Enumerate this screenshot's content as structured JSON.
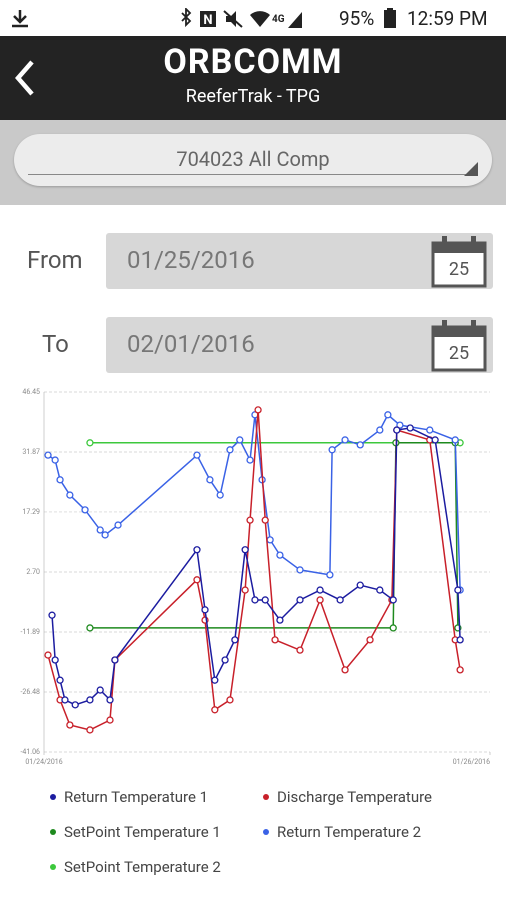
{
  "status_bar": {
    "battery": "95%",
    "time": "12:59 PM"
  },
  "header": {
    "logo": "ORBCOMM",
    "title": "ReeferTrak - TPG"
  },
  "unit_selector": "704023  All Comp",
  "date_range": {
    "from_label": "From",
    "from": "01/25/2016",
    "to_label": "To",
    "to": "02/01/2016",
    "calendar_day": "25"
  },
  "chart_data": {
    "type": "line",
    "xlim": [
      0,
      100
    ],
    "xticks": [
      {
        "value": 0,
        "label": "01/24/2016"
      },
      {
        "value": 100,
        "label": "01/26/2016"
      }
    ],
    "ylim": [
      -41.06,
      46.45
    ],
    "yticks": [
      -41.06,
      -26.48,
      -11.89,
      {
        "value": 2.7,
        "label": "2.70"
      },
      17.29,
      31.87,
      46.45
    ],
    "grid": true,
    "series": [
      {
        "name": "Return Temperature 1",
        "color": "#1c1ca0",
        "x": [
          1.8,
          2.5,
          3.6,
          4.7,
          7.0,
          10.3,
          12.6,
          14.8,
          15.9,
          34.3,
          36.1,
          38.3,
          40.6,
          42.8,
          45.1,
          47.3,
          49.6,
          52.9,
          57.4,
          61.9,
          66.4,
          70.9,
          75.3,
          78.3,
          79.1,
          82.1,
          87.7,
          92.8,
          93.3
        ],
        "values": [
          -7.8,
          -18.7,
          -23.6,
          -28.4,
          -29.6,
          -28.4,
          -26.0,
          -28.4,
          -18.7,
          8.1,
          -6.5,
          -23.6,
          -18.7,
          -13.8,
          8.1,
          -4.1,
          -4.1,
          -9.0,
          -4.1,
          -1.7,
          -4.1,
          -0.5,
          -1.7,
          -4.1,
          37.2,
          37.7,
          34.8,
          -1.7,
          -13.8
        ]
      },
      {
        "name": "Discharge Temperature",
        "color": "#c8202a",
        "x": [
          0.9,
          3.6,
          5.8,
          10.3,
          14.8,
          15.9,
          34.3,
          36.1,
          38.3,
          41.7,
          45.1,
          46.2,
          48.0,
          49.6,
          51.8,
          57.4,
          61.9,
          67.5,
          73.1,
          78.0,
          79.1,
          86.5,
          92.2,
          93.3
        ],
        "values": [
          -17.5,
          -28.4,
          -34.5,
          -35.7,
          -33.3,
          -18.7,
          0.8,
          -9.0,
          -30.8,
          -28.4,
          -1.7,
          15.3,
          42.1,
          15.3,
          -13.8,
          -16.3,
          -4.1,
          -21.1,
          -13.8,
          -4.1,
          37.2,
          34.8,
          -13.8,
          -21.1
        ]
      },
      {
        "name": "SetPoint Temperature 1",
        "color": "#1e8a1e",
        "x": [
          10.3,
          78.3,
          78.9,
          92.2,
          92.8
        ],
        "values": [
          -10.9,
          -10.9,
          34.1,
          34.1,
          -10.9
        ]
      },
      {
        "name": "Return Temperature 2",
        "color": "#3a62e6",
        "x": [
          0.9,
          2.5,
          3.6,
          5.8,
          9.2,
          12.6,
          13.7,
          16.6,
          34.3,
          37.2,
          39.5,
          41.7,
          43.9,
          46.2,
          47.3,
          48.9,
          50.7,
          52.9,
          57.4,
          64.1,
          64.6,
          67.5,
          70.9,
          75.3,
          77.1,
          79.8,
          86.5,
          92.2,
          93.3
        ],
        "values": [
          31.1,
          29.9,
          25.1,
          21.4,
          17.8,
          12.9,
          11.7,
          14.1,
          31.1,
          25.1,
          21.4,
          32.4,
          34.8,
          29.9,
          40.9,
          25.1,
          10.5,
          6.8,
          3.2,
          2.0,
          32.4,
          34.8,
          33.6,
          37.2,
          40.9,
          38.4,
          37.2,
          34.8,
          -1.7
        ]
      },
      {
        "name": "SetPoint Temperature 2",
        "color": "#3cc83c",
        "x": [
          10.3,
          93.3
        ],
        "values": [
          34.1,
          34.1
        ]
      }
    ]
  }
}
